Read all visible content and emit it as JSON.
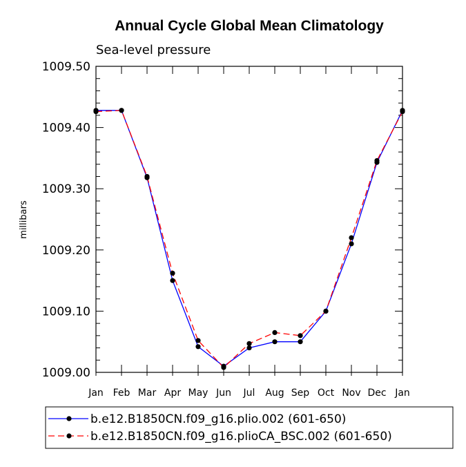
{
  "chart_data": {
    "type": "line",
    "title": "Annual Cycle Global Mean Climatology",
    "subtitle": "Sea-level pressure",
    "xlabel": "",
    "ylabel": "millibars",
    "categories": [
      "Jan",
      "Feb",
      "Mar",
      "Apr",
      "May",
      "Jun",
      "Jul",
      "Aug",
      "Sep",
      "Oct",
      "Nov",
      "Dec",
      "Jan"
    ],
    "ylim": [
      1009.0,
      1009.5
    ],
    "yticks": [
      "1009.00",
      "1009.10",
      "1009.20",
      "1009.30",
      "1009.40",
      "1009.50"
    ],
    "yticks_values": [
      1009.0,
      1009.1,
      1009.2,
      1009.3,
      1009.4,
      1009.5
    ],
    "legend_position": "bottom",
    "series": [
      {
        "name": "b.e12.B1850CN.f09_g16.plio.002 (601-650)",
        "color": "#0000ff",
        "dash": "solid",
        "values": [
          1009.428,
          1009.428,
          1009.318,
          1009.15,
          1009.042,
          1009.01,
          1009.04,
          1009.05,
          1009.05,
          1009.1,
          1009.21,
          1009.343,
          1009.428
        ]
      },
      {
        "name": "b.e12.B1850CN.f09_g16.plioCA_BSC.002 (601-650)",
        "color": "#ff0000",
        "dash": "dashed",
        "values": [
          1009.426,
          1009.428,
          1009.32,
          1009.162,
          1009.052,
          1009.008,
          1009.047,
          1009.065,
          1009.06,
          1009.1,
          1009.22,
          1009.346,
          1009.426
        ]
      }
    ],
    "marker_color": "#000000"
  }
}
